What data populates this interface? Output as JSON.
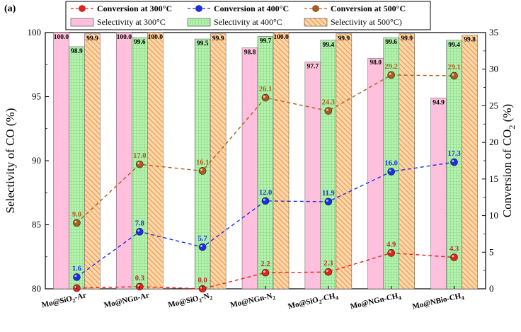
{
  "chart_data": {
    "type": "bar+line",
    "panel_label": "(a)",
    "categories": [
      "Mo@SiO2-Ar",
      "Mo@NGn-Ar",
      "Mo@SiO2-N2",
      "Mo@NGn-N2",
      "Mo@SiO2-CH4",
      "Mo@NGn-CH4",
      "Mo@NBio-CH4"
    ],
    "category_parts": [
      [
        "Mo@SiO",
        "2",
        "-Ar",
        ""
      ],
      [
        "Mo@NGn-Ar",
        "",
        "",
        ""
      ],
      [
        "Mo@SiO",
        "2",
        "-N",
        "2"
      ],
      [
        "Mo@NGn-N",
        "2",
        "",
        ""
      ],
      [
        "Mo@SiO",
        "2",
        "-CH",
        "4"
      ],
      [
        "Mo@NGn-CH",
        "4",
        "",
        ""
      ],
      [
        "Mo@NBio-CH",
        "4",
        "",
        ""
      ]
    ],
    "y_left": {
      "title": "Selectivity of CO (%)",
      "range": [
        80,
        100
      ],
      "ticks": [
        "80",
        "85",
        "90",
        "95",
        "100"
      ]
    },
    "y_right": {
      "title_main": "Conversion of CO",
      "title_sub": "2",
      "title_tail": " (%)",
      "range": [
        0,
        35
      ],
      "ticks": [
        "0",
        "5",
        "10",
        "15",
        "20",
        "25",
        "30",
        "35"
      ]
    },
    "bar_series": [
      {
        "name": "Selectivity at 300°C",
        "color": "#ffc0dd",
        "pattern": "solid",
        "values": [
          100.0,
          100.0,
          null,
          98.8,
          97.7,
          98.0,
          94.9
        ],
        "labels": [
          "100.0",
          "100.0",
          "",
          "98.8",
          "97.7",
          "98.0",
          "94.9"
        ]
      },
      {
        "name": "Selectivity at 400°C",
        "color": "#b7f2b0",
        "pattern": "grid",
        "values": [
          98.9,
          99.6,
          99.5,
          99.7,
          99.4,
          99.6,
          99.4
        ],
        "labels": [
          "98.9",
          "99.6",
          "99.5",
          "99.7",
          "99.4",
          "99.6",
          "99.4"
        ]
      },
      {
        "name": "Selectivity at 500°C)",
        "color": "#ffd7a8",
        "pattern": "hatch",
        "values": [
          99.9,
          100.0,
          99.9,
          100.0,
          99.9,
          99.9,
          99.8
        ],
        "labels": [
          "99.9",
          "100.0",
          "99.9",
          "100.0",
          "99.9",
          "99.9",
          "99.8"
        ]
      }
    ],
    "line_series": [
      {
        "name": "Conversion at 300°C",
        "color": "#e8201a",
        "label_color": "#c0282a",
        "values": [
          0.1,
          0.3,
          0.0,
          2.2,
          2.3,
          4.9,
          4.3
        ],
        "labels": [
          "",
          "0.3",
          "0.0",
          "2.2",
          "2.3",
          "4.9",
          "4.3"
        ]
      },
      {
        "name": "Conversion at 400°C",
        "color": "#1a2ee8",
        "label_color": "#1a2ee8",
        "values": [
          1.6,
          7.8,
          5.7,
          12.0,
          11.9,
          16.0,
          17.3
        ],
        "labels": [
          "1.6",
          "7.8",
          "5.7",
          "12.0",
          "11.9",
          "16.0",
          "17.3"
        ]
      },
      {
        "name": "Conversion at 500°C",
        "color": "#b05a1c",
        "label_color": "#b05a1c",
        "values": [
          9.0,
          17.0,
          16.1,
          26.1,
          24.3,
          29.2,
          29.1
        ],
        "labels": [
          "9.0",
          "17.0",
          "16.1",
          "26.1",
          "24.3",
          "29.2",
          "29.1"
        ]
      }
    ],
    "legend": {
      "placement": "top",
      "columns": 3
    }
  }
}
